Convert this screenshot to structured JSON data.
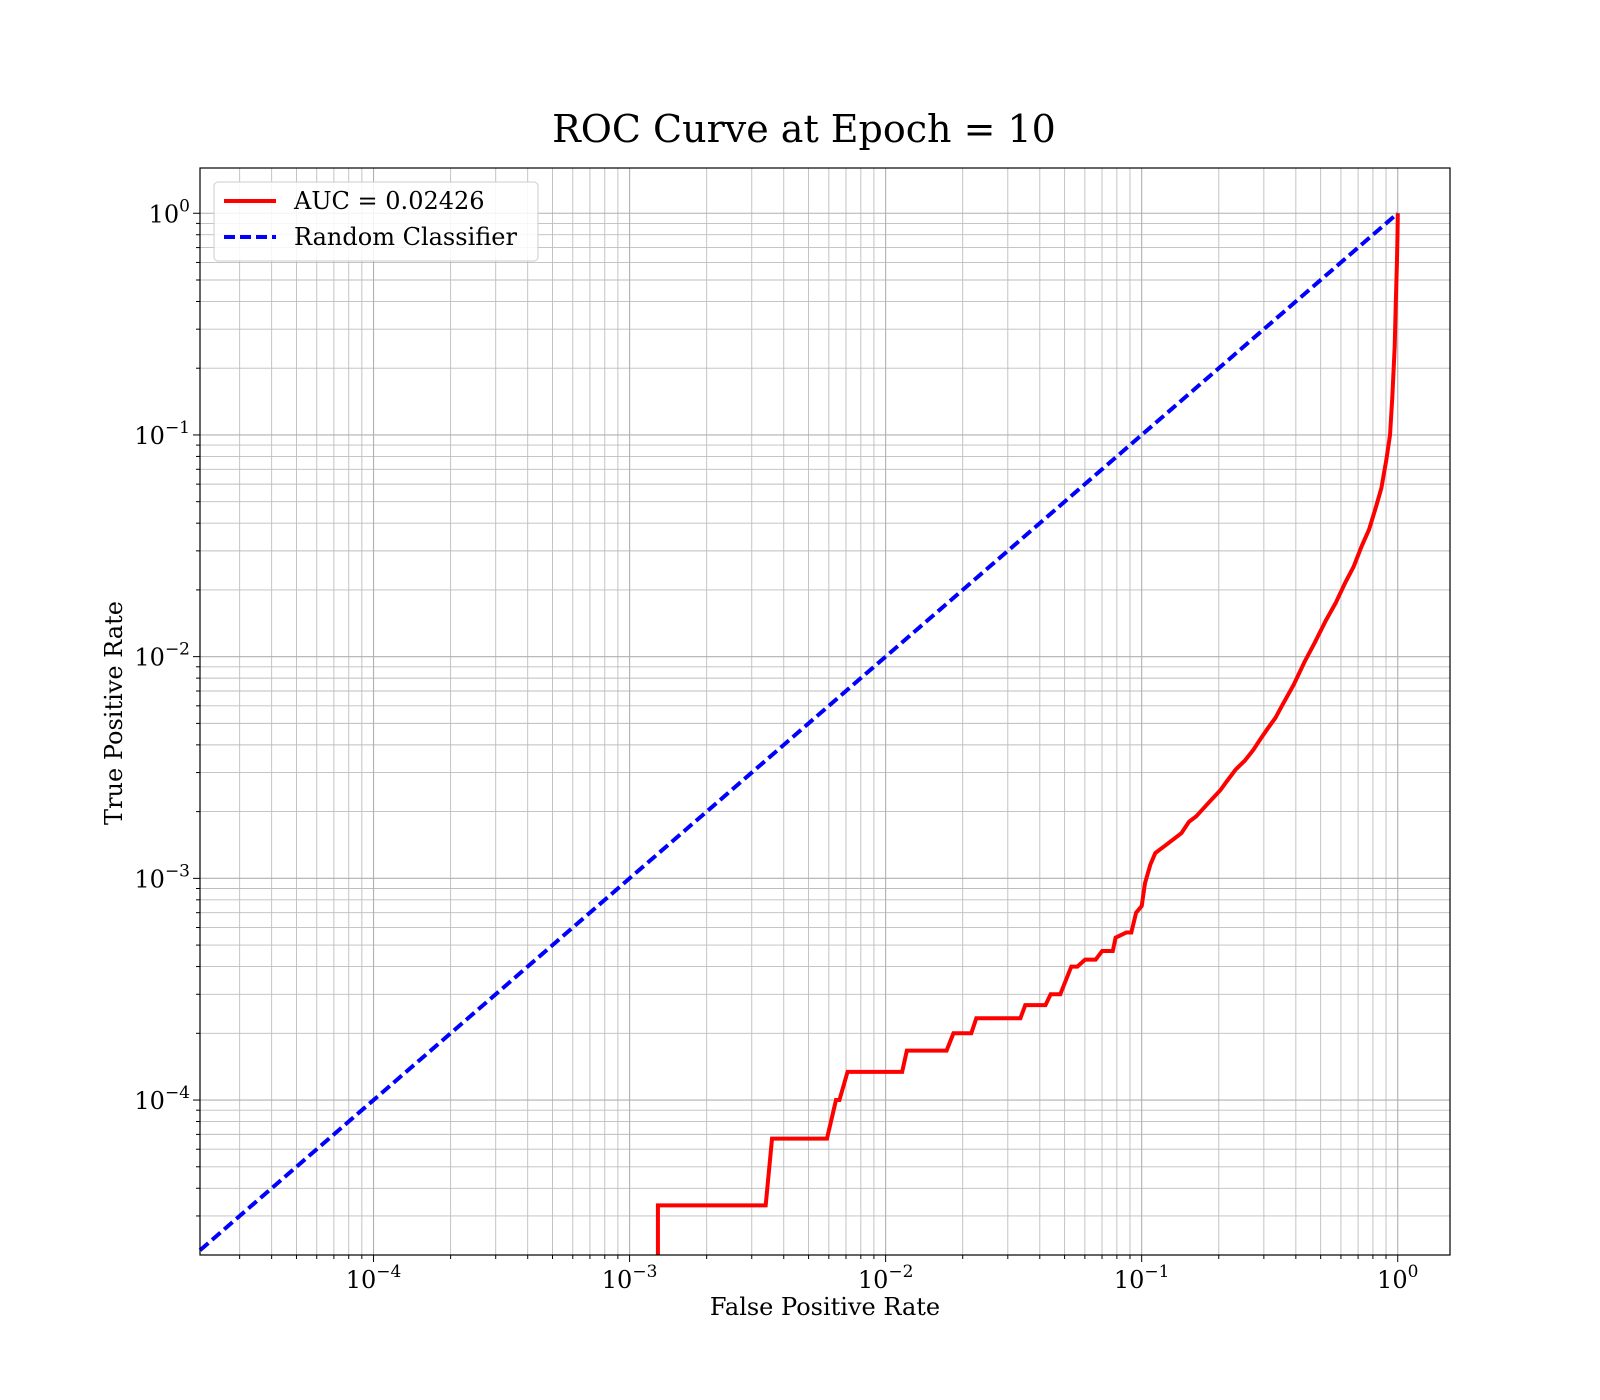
{
  "chart_data": {
    "type": "line",
    "title": "ROC Curve at Epoch = 10",
    "xlabel": "False Positive Rate",
    "ylabel": "True Positive Rate",
    "xscale": "log",
    "yscale": "log",
    "xlim": [
      2.1e-05,
      1.6
    ],
    "ylim": [
      2e-05,
      1.6
    ],
    "grid": true,
    "grid_minor": true,
    "legend_position": "top-left",
    "x_ticks": [
      {
        "value": 0.0001,
        "base": "10",
        "exp": "−4"
      },
      {
        "value": 0.001,
        "base": "10",
        "exp": "−3"
      },
      {
        "value": 0.01,
        "base": "10",
        "exp": "−2"
      },
      {
        "value": 0.1,
        "base": "10",
        "exp": "−1"
      },
      {
        "value": 1,
        "base": "10",
        "exp": "0"
      }
    ],
    "y_ticks": [
      {
        "value": 0.0001,
        "base": "10",
        "exp": "−4"
      },
      {
        "value": 0.001,
        "base": "10",
        "exp": "−3"
      },
      {
        "value": 0.01,
        "base": "10",
        "exp": "−2"
      },
      {
        "value": 0.1,
        "base": "10",
        "exp": "−1"
      },
      {
        "value": 1,
        "base": "10",
        "exp": "0"
      }
    ],
    "series": [
      {
        "name": "AUC = 0.02426",
        "color": "#ff0000",
        "style": "solid",
        "x": [
          0.00129,
          0.00129,
          0.0034,
          0.0036,
          0.0059,
          0.0064,
          0.0066,
          0.0071,
          0.0116,
          0.0121,
          0.0173,
          0.0184,
          0.0216,
          0.0226,
          0.0336,
          0.0351,
          0.0421,
          0.0441,
          0.0481,
          0.0531,
          0.0561,
          0.0601,
          0.0661,
          0.0701,
          0.0771,
          0.0791,
          0.0871,
          0.0911,
          0.0951,
          0.1,
          0.103,
          0.108,
          0.113,
          0.123,
          0.133,
          0.143,
          0.153,
          0.163,
          0.183,
          0.203,
          0.213,
          0.233,
          0.253,
          0.273,
          0.293,
          0.313,
          0.333,
          0.353,
          0.393,
          0.433,
          0.473,
          0.523,
          0.573,
          0.623,
          0.673,
          0.723,
          0.773,
          0.823,
          0.863,
          0.903,
          0.933,
          0.953,
          0.973,
          0.983,
          0.993,
          0.998,
          1.0,
          1.0
        ],
        "y": [
          2e-05,
          3.35e-05,
          3.35e-05,
          6.7e-05,
          6.7e-05,
          0.0001,
          0.0001,
          0.000134,
          0.000134,
          0.000167,
          0.000167,
          0.0002,
          0.0002,
          0.000234,
          0.000234,
          0.000268,
          0.000268,
          0.0003,
          0.0003,
          0.0004,
          0.0004,
          0.00043,
          0.00043,
          0.00047,
          0.00047,
          0.00054,
          0.00057,
          0.00057,
          0.0007,
          0.00075,
          0.00095,
          0.00115,
          0.0013,
          0.0014,
          0.0015,
          0.0016,
          0.0018,
          0.0019,
          0.0022,
          0.0025,
          0.0027,
          0.0031,
          0.0034,
          0.0038,
          0.0043,
          0.0048,
          0.0053,
          0.006,
          0.0075,
          0.0095,
          0.0115,
          0.0145,
          0.0175,
          0.0215,
          0.0255,
          0.0315,
          0.0375,
          0.0475,
          0.0575,
          0.0775,
          0.1,
          0.15,
          0.25,
          0.4,
          0.6,
          0.8,
          0.95,
          1.0
        ]
      },
      {
        "name": "Random Classifier",
        "color": "#0000ff",
        "style": "dashed",
        "x": [
          2.1e-05,
          1.0
        ],
        "y": [
          2.1e-05,
          1.0
        ]
      }
    ]
  }
}
